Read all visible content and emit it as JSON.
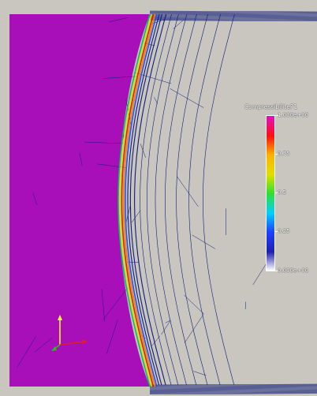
{
  "viewport": {
    "colors": {
      "background": "#c8c6bf",
      "domain": "#a90fb9",
      "mesh": "#101c7a",
      "interface_colors": [
        "#00c060",
        "#e0e000",
        "#e02000",
        "#f08000",
        "#2050ff"
      ]
    }
  },
  "legend": {
    "title": "CompressibiliteP1",
    "labels": [
      "1.000e+00",
      "0.75",
      "0.5",
      "0.25",
      "0.000e+00"
    ],
    "gradient": [
      "#e010c8",
      "#ff1010",
      "#ffb000",
      "#e0e000",
      "#30e030",
      "#00d0ff",
      "#2040ff",
      "#2020b0",
      "#ffffff"
    ]
  },
  "orientation_axes": {
    "colors": {
      "x": "#e02020",
      "y": "#ffff20",
      "z": "#20c020"
    }
  }
}
